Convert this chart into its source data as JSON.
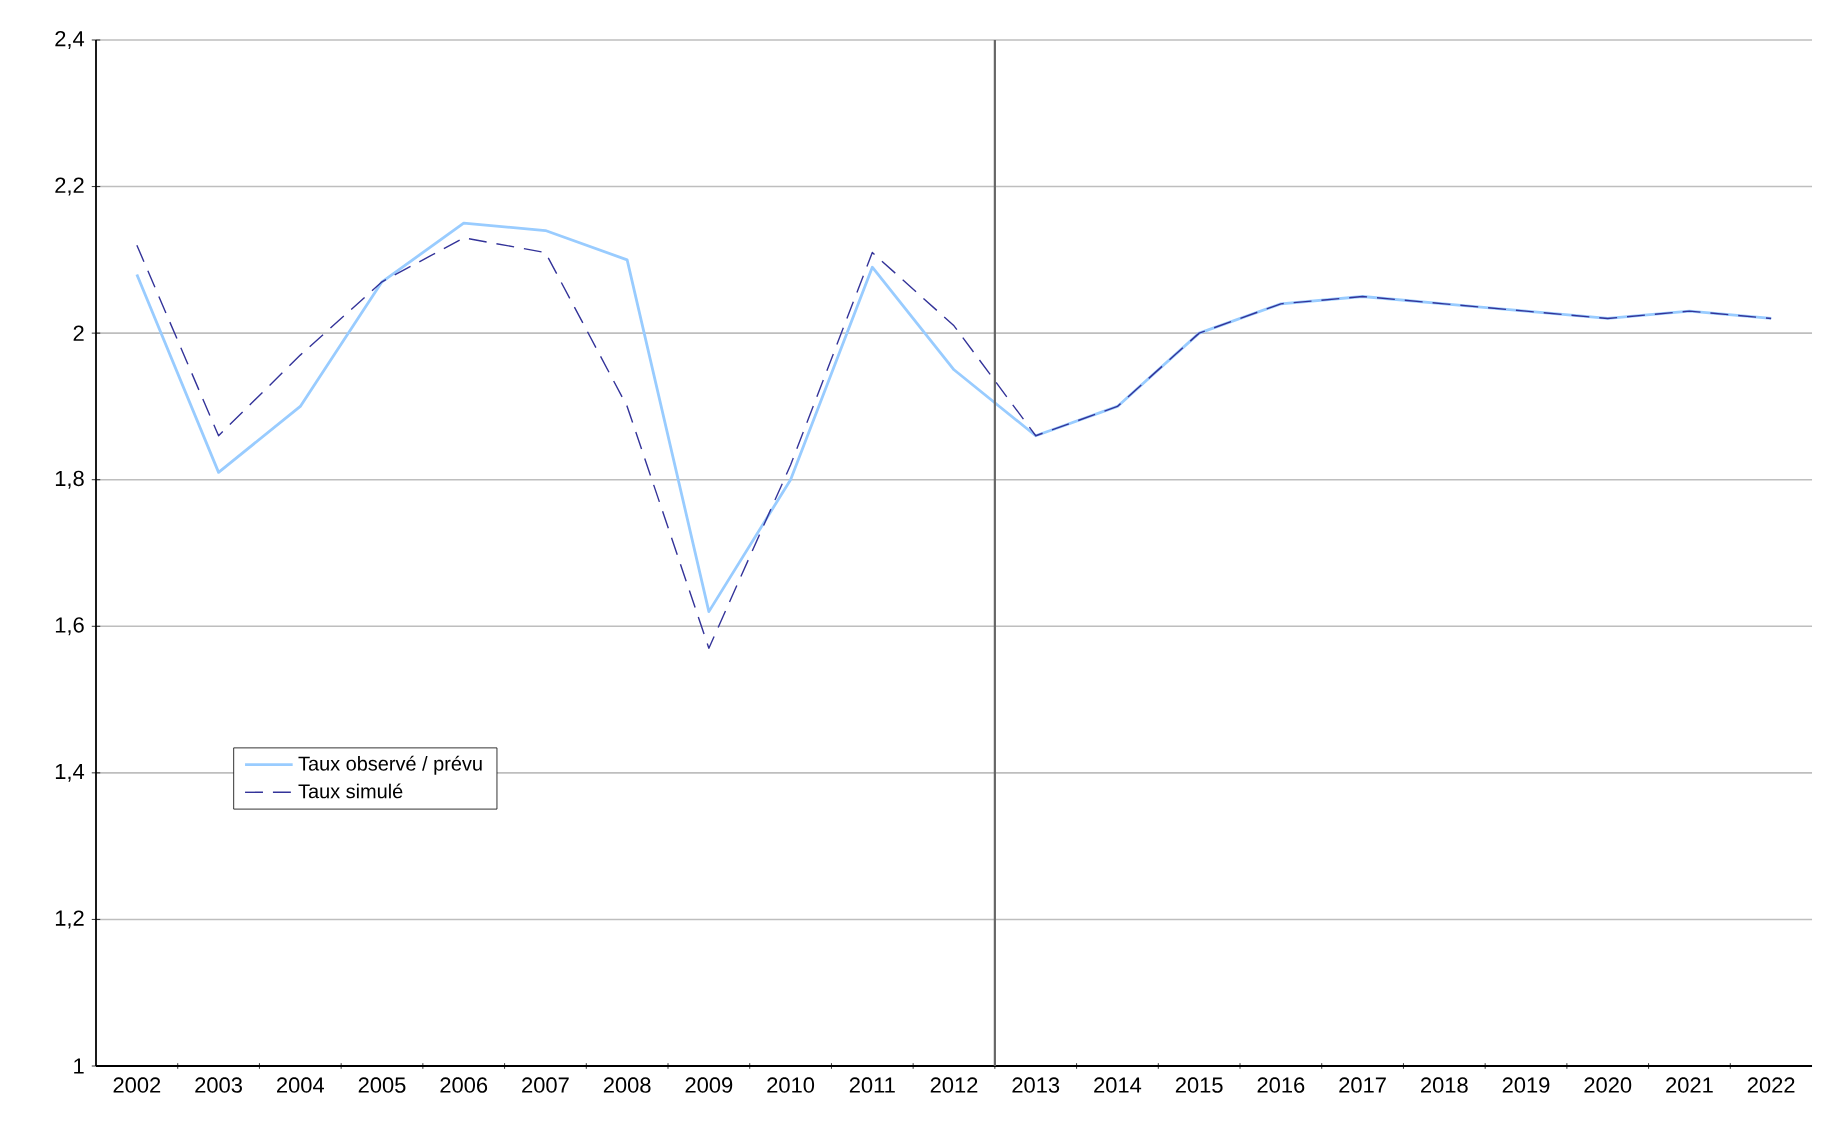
{
  "chart_data": {
    "type": "line",
    "x": [
      2002,
      2003,
      2004,
      2005,
      2006,
      2007,
      2008,
      2009,
      2010,
      2011,
      2012,
      2013,
      2014,
      2015,
      2016,
      2017,
      2018,
      2019,
      2020,
      2021,
      2022
    ],
    "xlim": [
      2001.5,
      2022.5
    ],
    "xticks": [
      2002,
      2003,
      2004,
      2005,
      2006,
      2007,
      2008,
      2009,
      2010,
      2011,
      2012,
      2013,
      2014,
      2015,
      2016,
      2017,
      2018,
      2019,
      2020,
      2021,
      2022
    ],
    "ylim": [
      1,
      2.4
    ],
    "yticks": [
      {
        "value": 1,
        "label": "1"
      },
      {
        "value": 1.2,
        "label": "1,2"
      },
      {
        "value": 1.4,
        "label": "1,4"
      },
      {
        "value": 1.6,
        "label": "1,6"
      },
      {
        "value": 1.8,
        "label": "1,8"
      },
      {
        "value": 2,
        "label": "2"
      },
      {
        "value": 2.2,
        "label": "2,2"
      },
      {
        "value": 2.4,
        "label": "2,4"
      }
    ],
    "grid": "y",
    "legend": "bottom left",
    "marker": "none",
    "series": [
      {
        "name": "Taux observé / prévu",
        "color": "#99ccff",
        "line_style": "solid",
        "values": [
          2.08,
          1.81,
          1.9,
          2.07,
          2.15,
          2.14,
          2.1,
          1.62,
          1.8,
          2.09,
          1.95,
          1.86,
          1.9,
          2.0,
          2.04,
          2.05,
          2.04,
          2.03,
          2.02,
          2.03,
          2.02
        ]
      },
      {
        "name": "Taux simulé",
        "color": "#333399",
        "line_style": "dashed",
        "values": [
          2.12,
          1.86,
          1.97,
          2.07,
          2.13,
          2.11,
          1.9,
          1.57,
          1.82,
          2.11,
          2.01,
          1.86,
          1.9,
          2.0,
          2.04,
          2.05,
          2.04,
          2.03,
          2.02,
          2.03,
          2.02
        ]
      }
    ],
    "ref_lines": [
      {
        "axis": "x",
        "value": 2012.5,
        "color": "#666666"
      }
    ]
  }
}
